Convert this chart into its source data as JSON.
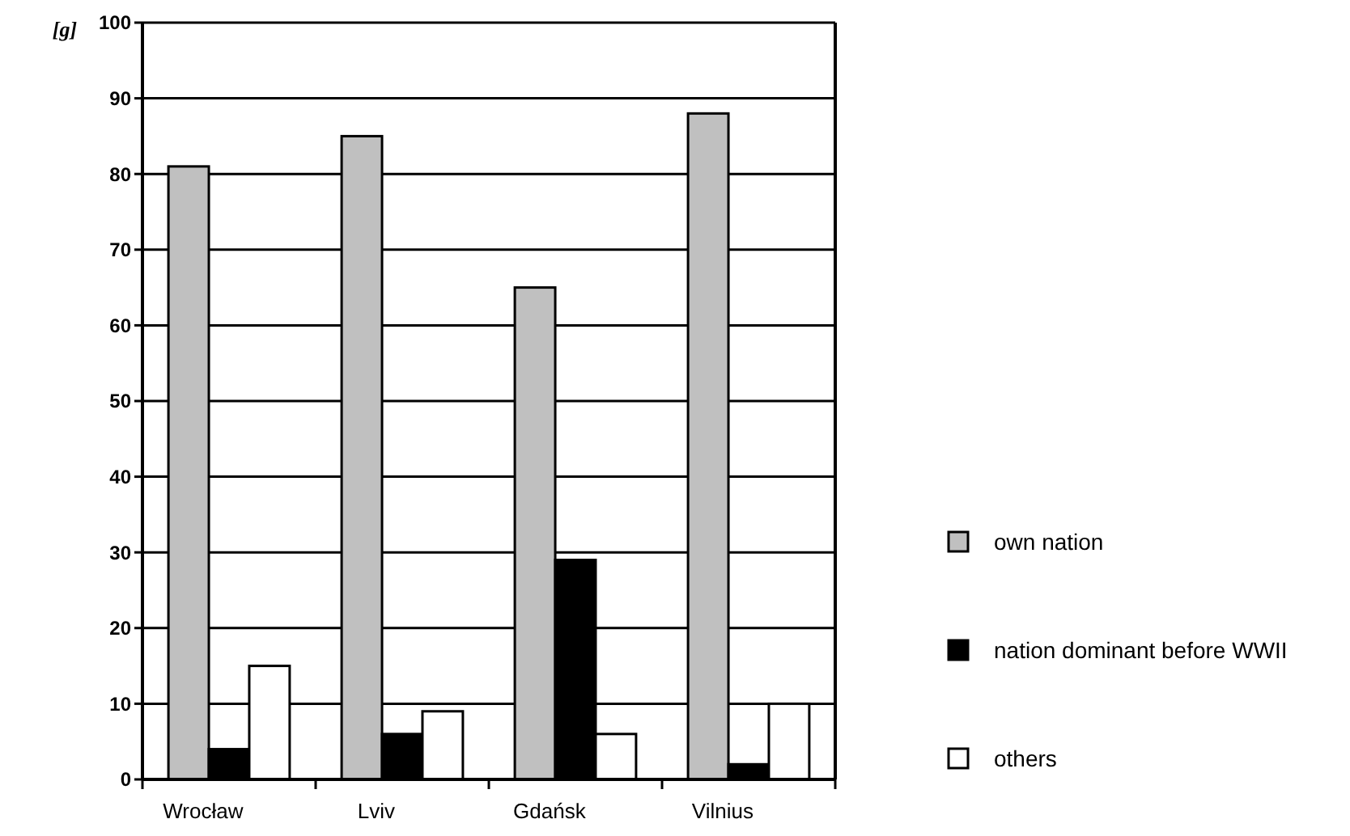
{
  "chart_data": {
    "type": "bar",
    "ylabel": "[g]",
    "categories": [
      "Wrocław",
      "Lviv",
      "Gdańsk",
      "Vilnius"
    ],
    "series": [
      {
        "name": "own nation",
        "color": "#c0c0c0",
        "values": [
          81,
          85,
          65,
          88
        ]
      },
      {
        "name": "nation dominant before WWII",
        "color": "#000000",
        "values": [
          4,
          6,
          29,
          2
        ]
      },
      {
        "name": "others",
        "color": "#ffffff",
        "values": [
          15,
          9,
          6,
          10
        ]
      }
    ],
    "ylim": [
      0,
      100
    ],
    "yticks": [
      0,
      10,
      20,
      30,
      40,
      50,
      60,
      70,
      80,
      90,
      100
    ],
    "grid": "y",
    "legend": "right"
  }
}
